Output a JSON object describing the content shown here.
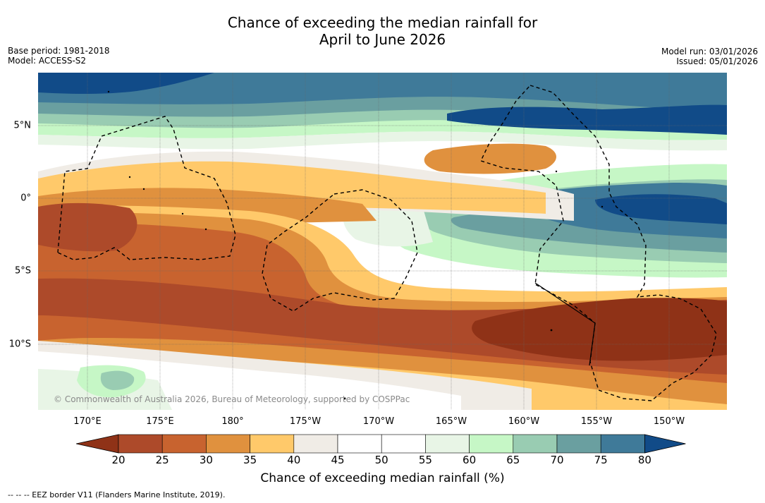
{
  "title_line1": "Chance of exceeding the median rainfall for",
  "title_line2": "April to June 2026",
  "base_period": "Base period: 1981-2018",
  "model": "Model: ACCESS-S2",
  "model_run": "Model run: 03/01/2026",
  "issued": "Issued: 05/01/2026",
  "lat_labels": [
    "5°N",
    "0°",
    "5°S",
    "10°S"
  ],
  "lon_labels": [
    "170°E",
    "175°E",
    "180°",
    "175°W",
    "170°W",
    "165°W",
    "160°W",
    "155°W",
    "150°W"
  ],
  "copyright": "© Commonwealth of Australia 2026, Bureau of Meteorology, supported by COSPPac",
  "colorbar": {
    "ticks": [
      "20",
      "25",
      "30",
      "35",
      "40",
      "45",
      "50",
      "55",
      "60",
      "65",
      "70",
      "75",
      "80"
    ],
    "colors": [
      "#8f3217",
      "#ad4a2a",
      "#c8632f",
      "#e0913e",
      "#ffc96a",
      "#f0ece6",
      "#ffffff",
      "#ffffff",
      "#e8f5e6",
      "#c6f7c6",
      "#99ccb2",
      "#6a9fa0",
      "#3f7a99",
      "#114b88"
    ],
    "label": "Chance of exceeding median rainfall (%)"
  },
  "footer": "--  --  -- EEZ border V11 (Flanders Marine Institute, 2019)."
}
